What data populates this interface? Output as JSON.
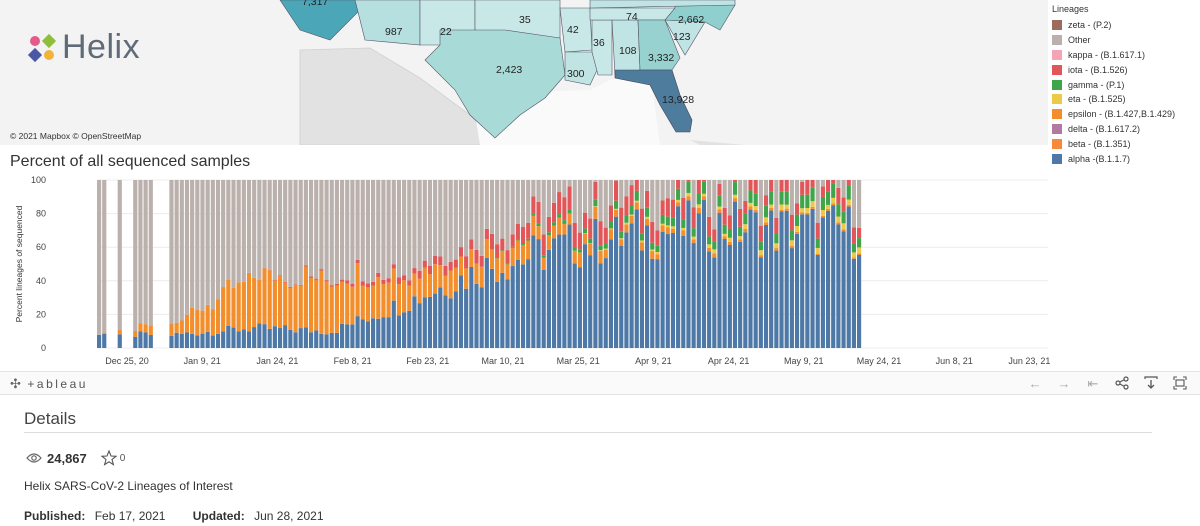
{
  "map": {
    "credit": "© 2021 Mapbox  © OpenStreetMap",
    "state_labels": [
      "7,317",
      "987",
      "22",
      "35",
      "42",
      "74",
      "2,662",
      "36",
      "108",
      "123",
      "3,332",
      "2,423",
      "300",
      "13,928"
    ]
  },
  "logo": {
    "word": "Helix"
  },
  "legend": {
    "title": "Lineages",
    "items": [
      {
        "label": "zeta - (P.2)",
        "color": "#9c6b5e"
      },
      {
        "label": "Other",
        "color": "#bab0ac"
      },
      {
        "label": "kappa - (B.1.617.1)",
        "color": "#f4a4b4"
      },
      {
        "label": "iota - (B.1.526)",
        "color": "#e15759"
      },
      {
        "label": "gamma - (P.1)",
        "color": "#3fa54a"
      },
      {
        "label": "eta - (B.1.525)",
        "color": "#edc948"
      },
      {
        "label": "epsilon - (B.1.427,B.1.429)",
        "color": "#f28e2b"
      },
      {
        "label": "delta - (B.1.617.2)",
        "color": "#b07aa1"
      },
      {
        "label": "beta - (B.1.351)",
        "color": "#f7893b"
      },
      {
        "label": "alpha -(B.1.1.7)",
        "color": "#4e79a7"
      }
    ]
  },
  "chart": {
    "title": "Percent of all sequenced samples",
    "ylabel": "Percent lineages of sequenced"
  },
  "chart_data": {
    "type": "bar",
    "stacked": true,
    "title": "Percent of all sequenced samples",
    "ylabel": "Percent lineages of sequenced",
    "ylim": [
      0,
      100
    ],
    "yticks": [
      "0",
      "20",
      "40",
      "60",
      "80",
      "100"
    ],
    "xticks": [
      "Dec 25, 20",
      "Jan 9, 21",
      "Jan 24, 21",
      "Feb 8, 21",
      "Feb 23, 21",
      "Mar 10, 21",
      "Mar 25, 21",
      "Apr 9, 21",
      "Apr 24, 21",
      "May 9, 21",
      "May 24, 21",
      "Jun 8, 21",
      "Jun 23, 21"
    ],
    "series_order": [
      "alpha",
      "beta_epsilon",
      "eta",
      "gamma",
      "iota",
      "other"
    ],
    "series_colors": {
      "alpha": "#4e79a7",
      "beta_epsilon": "#f28e2b",
      "eta": "#edc948",
      "gamma": "#3fa54a",
      "iota": "#e15759",
      "delta": "#b07aa1",
      "other": "#bab0ac"
    },
    "keyframes": [
      {
        "day": 0,
        "alpha": 8,
        "beta_epsilon": 0,
        "eta": 0,
        "gamma": 0,
        "iota": 0
      },
      {
        "day": 15,
        "alpha": 8,
        "beta_epsilon": 8,
        "eta": 0,
        "gamma": 0,
        "iota": 0
      },
      {
        "day": 30,
        "alpha": 12,
        "beta_epsilon": 30,
        "eta": 0,
        "gamma": 0,
        "iota": 0
      },
      {
        "day": 45,
        "alpha": 10,
        "beta_epsilon": 32,
        "eta": 0,
        "gamma": 0,
        "iota": 1
      },
      {
        "day": 60,
        "alpha": 28,
        "beta_epsilon": 18,
        "eta": 0,
        "gamma": 0,
        "iota": 4
      },
      {
        "day": 75,
        "alpha": 48,
        "beta_epsilon": 12,
        "eta": 0,
        "gamma": 0,
        "iota": 8
      },
      {
        "day": 90,
        "alpha": 60,
        "beta_epsilon": 8,
        "eta": 0,
        "gamma": 2,
        "iota": 12
      },
      {
        "day": 105,
        "alpha": 68,
        "beta_epsilon": 4,
        "eta": 1,
        "gamma": 5,
        "iota": 12
      },
      {
        "day": 120,
        "alpha": 72,
        "beta_epsilon": 2,
        "eta": 2,
        "gamma": 6,
        "iota": 9
      },
      {
        "day": 135,
        "alpha": 70,
        "beta_epsilon": 1,
        "eta": 3,
        "gamma": 7,
        "iota": 8
      }
    ]
  },
  "toolbar": {
    "brand": "+ableau",
    "buttons": [
      "undo",
      "redo",
      "revert",
      "share",
      "download",
      "fullscreen"
    ]
  },
  "details": {
    "title": "Details",
    "views": "24,867",
    "favorites": "0",
    "workbook_name": "Helix SARS-CoV-2 Lineages of Interest",
    "published_label": "Published:",
    "published_value": "Feb 17, 2021",
    "updated_label": "Updated:",
    "updated_value": "Jun 28, 2021"
  }
}
